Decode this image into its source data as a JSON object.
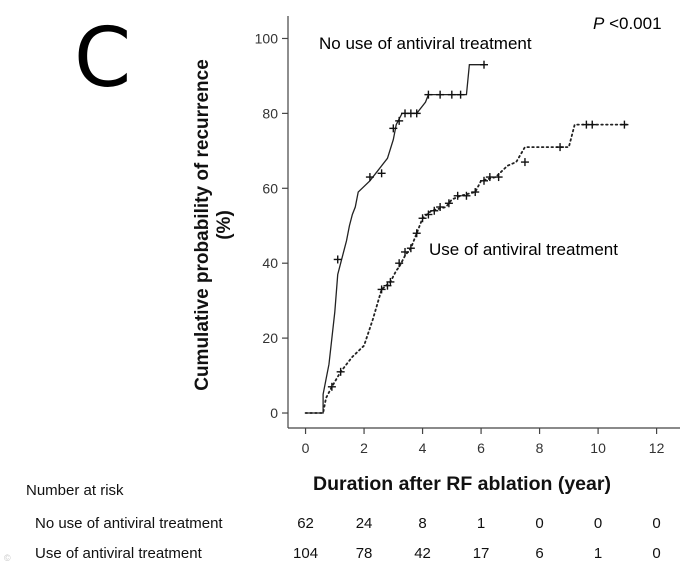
{
  "panel_label": "C",
  "p_value": {
    "symbol": "P",
    "text": "<0.001"
  },
  "watermark": "©",
  "chart_data": {
    "type": "line",
    "title": "",
    "xlabel": "Duration after RF ablation (year)",
    "ylabel_lines": [
      "Cumulative probability of recurrence",
      "(%)"
    ],
    "xlim": [
      -0.6,
      12.8
    ],
    "ylim": [
      -4,
      106
    ],
    "xticks": [
      0,
      2,
      4,
      6,
      8,
      10,
      12
    ],
    "yticks": [
      0,
      20,
      40,
      60,
      80,
      100
    ],
    "series": [
      {
        "name": "No use of antiviral treatment",
        "style": "solid",
        "points": [
          [
            0.0,
            0
          ],
          [
            0.6,
            0
          ],
          [
            0.6,
            5
          ],
          [
            0.7,
            9
          ],
          [
            0.8,
            13
          ],
          [
            1.0,
            27
          ],
          [
            1.1,
            37
          ],
          [
            1.2,
            40
          ],
          [
            1.3,
            43
          ],
          [
            1.4,
            46
          ],
          [
            1.5,
            50
          ],
          [
            1.6,
            53
          ],
          [
            1.7,
            55
          ],
          [
            1.8,
            59
          ],
          [
            2.2,
            62
          ],
          [
            2.4,
            64
          ],
          [
            2.8,
            68
          ],
          [
            3.0,
            73
          ],
          [
            3.1,
            77
          ],
          [
            3.3,
            80
          ],
          [
            3.8,
            80
          ],
          [
            4.1,
            83
          ],
          [
            4.2,
            85
          ],
          [
            5.5,
            85
          ],
          [
            5.6,
            93
          ],
          [
            6.1,
            93
          ]
        ],
        "censored": [
          [
            1.1,
            41
          ],
          [
            2.2,
            63
          ],
          [
            2.6,
            64
          ],
          [
            3.0,
            76
          ],
          [
            3.2,
            78
          ],
          [
            3.4,
            80
          ],
          [
            3.6,
            80
          ],
          [
            3.8,
            80
          ],
          [
            4.2,
            85
          ],
          [
            4.6,
            85
          ],
          [
            5.0,
            85
          ],
          [
            5.3,
            85
          ],
          [
            6.1,
            93
          ]
        ]
      },
      {
        "name": "Use of antiviral treatment",
        "style": "dotted",
        "points": [
          [
            0.0,
            0
          ],
          [
            0.6,
            0
          ],
          [
            0.7,
            4
          ],
          [
            0.9,
            7
          ],
          [
            1.2,
            11
          ],
          [
            1.6,
            15
          ],
          [
            2.0,
            18
          ],
          [
            2.3,
            25
          ],
          [
            2.6,
            33
          ],
          [
            2.9,
            35
          ],
          [
            3.1,
            38
          ],
          [
            3.2,
            39
          ],
          [
            3.4,
            42
          ],
          [
            3.6,
            44
          ],
          [
            3.8,
            48
          ],
          [
            4.0,
            52
          ],
          [
            4.3,
            54
          ],
          [
            4.8,
            55
          ],
          [
            5.0,
            57
          ],
          [
            5.3,
            58
          ],
          [
            5.8,
            59
          ],
          [
            6.0,
            62
          ],
          [
            6.5,
            63
          ],
          [
            6.9,
            66
          ],
          [
            7.2,
            67
          ],
          [
            7.5,
            71
          ],
          [
            9.0,
            71
          ],
          [
            9.2,
            77
          ],
          [
            11.0,
            77
          ]
        ],
        "censored": [
          [
            0.9,
            7
          ],
          [
            1.2,
            11
          ],
          [
            2.6,
            33
          ],
          [
            2.8,
            34
          ],
          [
            2.9,
            35
          ],
          [
            3.2,
            40
          ],
          [
            3.4,
            43
          ],
          [
            3.6,
            44
          ],
          [
            3.8,
            48
          ],
          [
            4.0,
            52
          ],
          [
            4.2,
            53
          ],
          [
            4.4,
            54
          ],
          [
            4.6,
            55
          ],
          [
            4.9,
            56
          ],
          [
            5.2,
            58
          ],
          [
            5.5,
            58
          ],
          [
            5.8,
            59
          ],
          [
            6.1,
            62
          ],
          [
            6.3,
            63
          ],
          [
            6.6,
            63
          ],
          [
            7.5,
            67
          ],
          [
            8.7,
            71
          ],
          [
            9.6,
            77
          ],
          [
            9.8,
            77
          ],
          [
            10.9,
            77
          ]
        ]
      }
    ]
  },
  "curve_labels": {
    "no_use": "No use of antiviral treatment",
    "use": "Use of antiviral treatment"
  },
  "risk_table": {
    "title": "Number at risk",
    "rows": [
      {
        "label": "No use of antiviral treatment",
        "values": [
          "62",
          "24",
          "8",
          "1",
          "0",
          "0",
          "0"
        ]
      },
      {
        "label": "Use of antiviral treatment",
        "values": [
          "104",
          "78",
          "42",
          "17",
          "6",
          "1",
          "0"
        ]
      }
    ]
  }
}
